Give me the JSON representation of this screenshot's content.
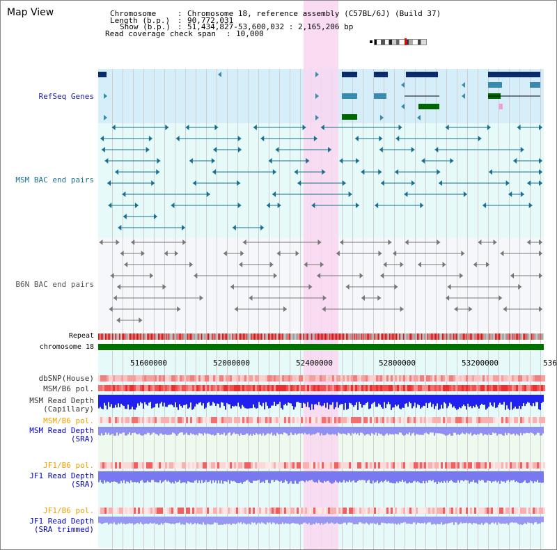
{
  "title": "Map View",
  "info": {
    "chromosome_label": "Chromosome",
    "chromosome_value": "Chromosome 18, reference assembly (C57BL/6J) (Build 37)",
    "length_label": "Length (b.p.)",
    "length_value": "90,772,031",
    "show_label": "Show (b.p.)",
    "show_value": "51,434,827-53,600,032 : 2,165,206 bp",
    "coverage_label": "Read coverage check span",
    "coverage_value": "10,000"
  },
  "tracks": {
    "refseq": "RefSeq Genes",
    "msm_bac": "MSM BAC end pairs",
    "b6n_bac": "B6N BAC end pairs",
    "repeat": "Repeat",
    "chromosome": "chromosome 18",
    "dbsnp": "dbSNP(House)",
    "msm_b6_pol": "MSM/B6 pol.",
    "msm_depth_cap_1": "MSM Read Depth",
    "msm_depth_cap_2": "(Capillary)",
    "msm_b6_pol_sra": "MSM/B6 pol.",
    "msm_depth_sra_1": "MSM Read Depth",
    "msm_depth_sra_2": "(SRA)",
    "jf1_b6_pol": "JF1/B6 pol.",
    "jf1_depth_1": "JF1 Read Depth",
    "jf1_depth_2": "(SRA)",
    "jf1_b6_pol_trim": "JF1/B6 pol.",
    "jf1_trim_1": "JF1 Read Depth",
    "jf1_trim_2": "(SRA trimmed)"
  },
  "axis": {
    "ticks": [
      "51600000",
      "52000000",
      "52400000",
      "52800000",
      "53200000",
      "536"
    ]
  },
  "colors": {
    "refseq_bg": "#d6eefa",
    "msm_bg": "#e6fafa",
    "b6n_bg": "#f4f6fa",
    "highlight": "#f9d6f0",
    "refseq_label": "#1a1aa6",
    "msm_label": "#1a6e8e",
    "b6n_label": "#555555",
    "orange_label": "#f0a000",
    "blue_label": "#0000c0",
    "chromosome_bar": "#007000"
  }
}
